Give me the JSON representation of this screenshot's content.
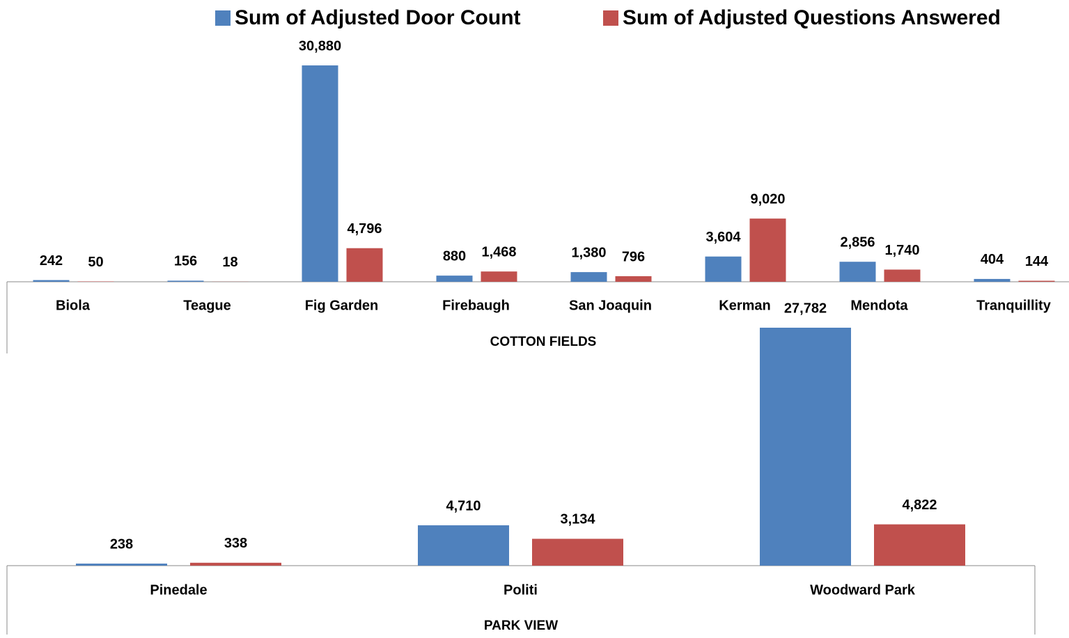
{
  "chart_data": [
    {
      "type": "bar",
      "xlabel": "COTTON FIELDS",
      "categories": [
        "Biola",
        "Teague",
        "Fig Garden",
        "Firebaugh",
        "San Joaquin",
        "Kerman",
        "Mendota",
        "Tranquillity"
      ],
      "series": [
        {
          "name": "Sum of Adjusted Door Count",
          "color": "#4f81bd",
          "values": [
            242,
            156,
            30880,
            880,
            1380,
            3604,
            2856,
            404
          ],
          "value_labels": [
            "242",
            "156",
            "30,880",
            "880",
            "1,380",
            "3,604",
            "2,856",
            "404"
          ]
        },
        {
          "name": "Sum of Adjusted Questions Answered",
          "color": "#c0504d",
          "values": [
            50,
            18,
            4796,
            1468,
            796,
            9020,
            1740,
            144
          ],
          "value_labels": [
            "50",
            "18",
            "4,796",
            "1,468",
            "796",
            "9,020",
            "1,740",
            "144"
          ]
        }
      ]
    },
    {
      "type": "bar",
      "xlabel": "PARK VIEW",
      "categories": [
        "Pinedale",
        "Politi",
        "Woodward Park"
      ],
      "series": [
        {
          "color": "#4f81bd",
          "values": [
            238,
            4710,
            27782
          ],
          "value_labels": [
            "238",
            "4,710",
            "27,782"
          ]
        },
        {
          "color": "#c0504d",
          "values": [
            338,
            3134,
            4822
          ],
          "value_labels": [
            "338",
            "3,134",
            "4,822"
          ]
        }
      ]
    }
  ]
}
